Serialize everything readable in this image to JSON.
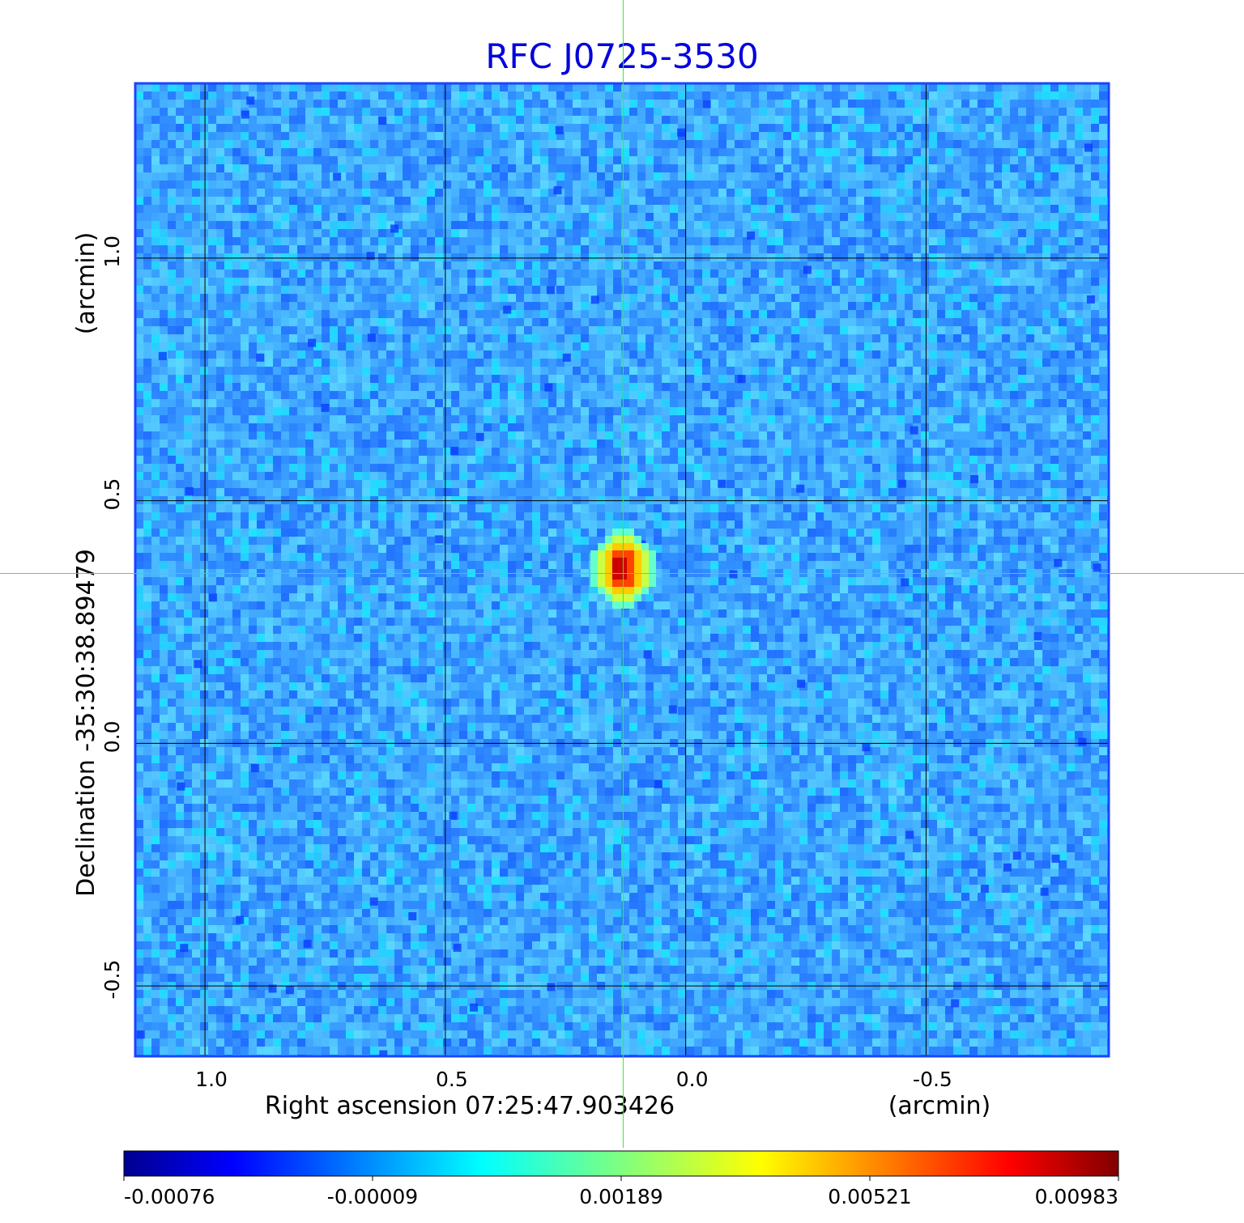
{
  "chart_data": {
    "type": "heatmap",
    "title": "RFC J0725-3530",
    "xlabel": "Right ascension  07:25:47.903426",
    "x_unit": "(arcmin)",
    "ylabel": "Declination  -35:30:38.89479",
    "y_unit": "(arcmin)",
    "x_ticks": [
      "1.0",
      "0.5",
      "0.0",
      "-0.5"
    ],
    "y_ticks": [
      "1.0",
      "0.5",
      "0.0",
      "-0.5"
    ],
    "x_tick_values": [
      1.0,
      0.5,
      0.0,
      -0.5
    ],
    "y_tick_values": [
      1.0,
      0.5,
      0.0,
      -0.5
    ],
    "xlim": [
      1.145,
      -0.88
    ],
    "ylim": [
      -0.645,
      1.36
    ],
    "grid": true,
    "crosshair": {
      "x": 0.13,
      "y": 0.35
    },
    "peak": {
      "x": 0.13,
      "y": 0.36,
      "value": 0.00983
    },
    "colorbar": {
      "ticks": [
        "-0.00076",
        "-0.00009",
        "0.00189",
        "0.00521",
        "0.00983"
      ],
      "colormap": "jet"
    },
    "colors": {
      "title": "#0000dd",
      "frame": "#1a44ff",
      "grid": "#000000",
      "crosshair": "#33ee33",
      "background": "#3aa0ff"
    }
  }
}
